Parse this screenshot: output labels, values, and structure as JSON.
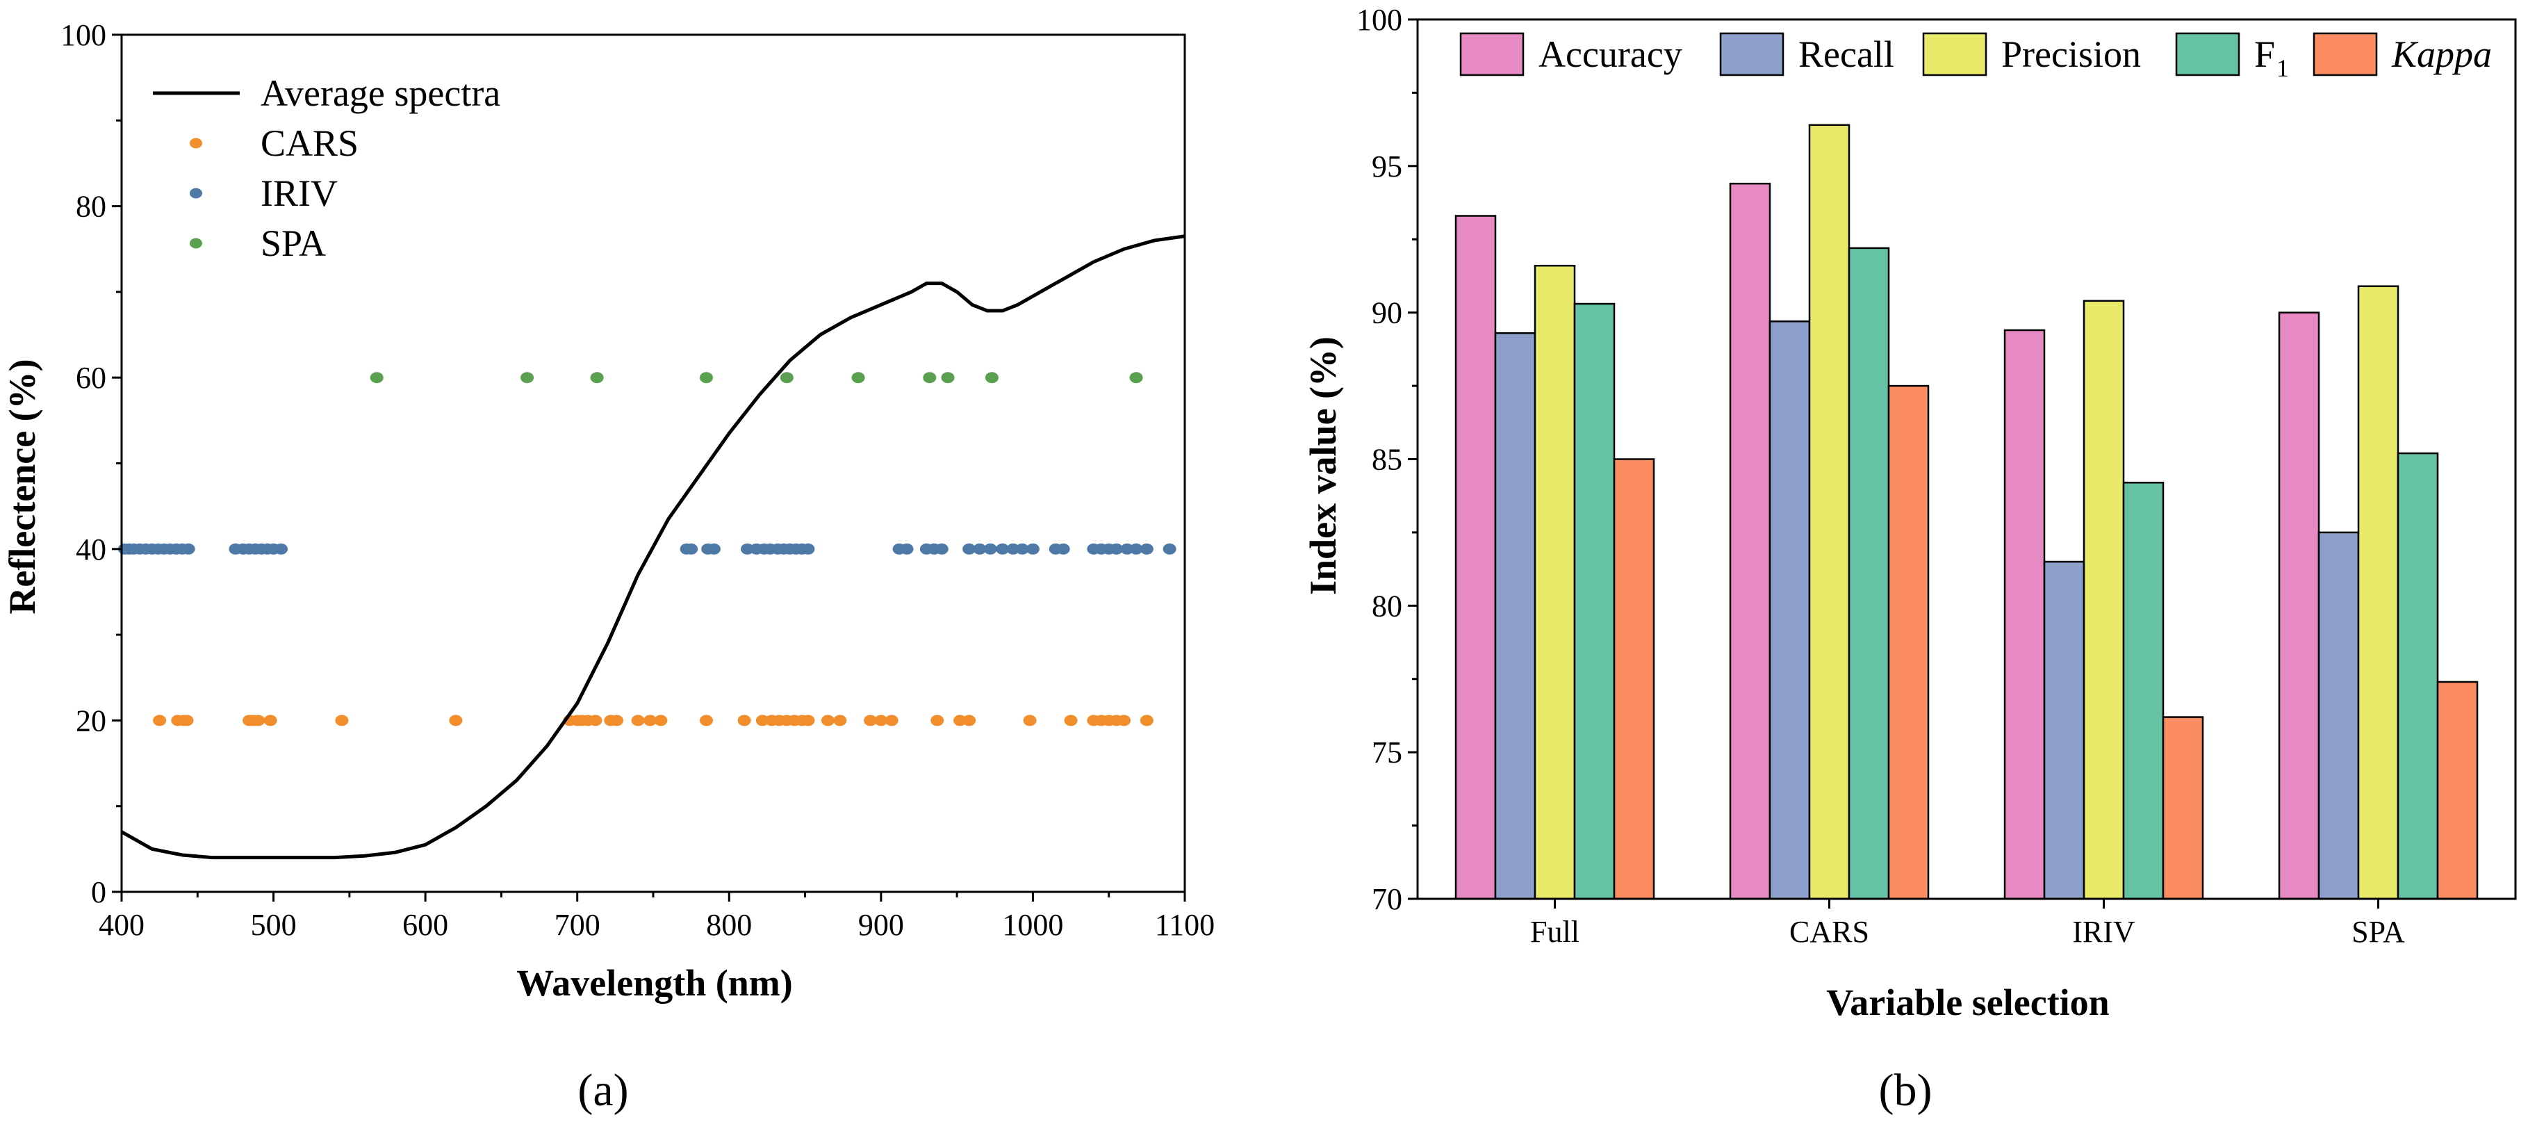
{
  "chart_data": [
    {
      "type": "scatter",
      "panel_label": "(a)",
      "xlabel": "Wavelength (nm)",
      "ylabel": "Reflectence (%)",
      "xlim": [
        400,
        1100
      ],
      "ylim": [
        0,
        100
      ],
      "xticks": [
        400,
        500,
        600,
        700,
        800,
        900,
        1000,
        1100
      ],
      "yticks": [
        0,
        20,
        40,
        60,
        80,
        100
      ],
      "grid": false,
      "legend_position": "top-left",
      "colors": {
        "line": "#000000",
        "CARS": "#F28E2B",
        "IRIV": "#4E79A7",
        "SPA": "#59A14F"
      },
      "line_series": {
        "name": "Average spectra",
        "x": [
          400,
          420,
          440,
          460,
          480,
          500,
          520,
          540,
          560,
          580,
          600,
          620,
          640,
          660,
          680,
          700,
          720,
          740,
          760,
          780,
          800,
          820,
          840,
          860,
          880,
          900,
          920,
          930,
          940,
          950,
          960,
          970,
          980,
          990,
          1000,
          1020,
          1040,
          1060,
          1080,
          1100
        ],
        "y": [
          7,
          5,
          4.3,
          4,
          4,
          4,
          4,
          4,
          4.2,
          4.6,
          5.5,
          7.5,
          10,
          13,
          17,
          22,
          29,
          37,
          43.5,
          48.5,
          53.5,
          58,
          62,
          65,
          67,
          68.5,
          70,
          71,
          71,
          70,
          68.5,
          67.8,
          67.8,
          68.5,
          69.5,
          71.5,
          73.5,
          75,
          76,
          76.5
        ]
      },
      "scatter_series": [
        {
          "name": "CARS",
          "y": 20,
          "x": [
            425,
            437,
            441,
            443,
            484,
            487,
            490,
            498,
            545,
            620,
            695,
            700,
            703,
            707,
            712,
            722,
            726,
            740,
            748,
            755,
            785,
            810,
            822,
            828,
            833,
            838,
            843,
            848,
            852,
            865,
            873,
            893,
            900,
            907,
            937,
            952,
            958,
            998,
            1025,
            1040,
            1045,
            1050,
            1055,
            1060,
            1075
          ]
        },
        {
          "name": "IRIV",
          "y": 40,
          "x": [
            402,
            405,
            408,
            412,
            416,
            420,
            424,
            428,
            432,
            436,
            440,
            444,
            475,
            480,
            484,
            488,
            492,
            496,
            500,
            505,
            772,
            775,
            786,
            790,
            812,
            818,
            823,
            827,
            832,
            836,
            840,
            844,
            848,
            852,
            912,
            917,
            930,
            935,
            940,
            958,
            965,
            972,
            980,
            987,
            993,
            1000,
            1015,
            1020,
            1040,
            1045,
            1050,
            1055,
            1062,
            1068,
            1075,
            1090
          ]
        },
        {
          "name": "SPA",
          "y": 60,
          "x": [
            568,
            667,
            713,
            785,
            838,
            885,
            932,
            944,
            973,
            1068
          ]
        }
      ]
    },
    {
      "type": "bar",
      "panel_label": "(b)",
      "xlabel": "Variable selection",
      "ylabel": "Index value (%)",
      "ylim": [
        70,
        100
      ],
      "yticks": [
        70,
        75,
        80,
        85,
        90,
        95,
        100
      ],
      "grid": false,
      "legend_position": "top",
      "categories": [
        "Full",
        "CARS",
        "IRIV",
        "SPA"
      ],
      "series": [
        {
          "name": "Accuracy",
          "color": "#E78AC3",
          "values": [
            93.3,
            94.4,
            89.4,
            90.0
          ]
        },
        {
          "name": "Recall",
          "color": "#8DA0CB",
          "values": [
            89.3,
            89.7,
            81.5,
            82.5
          ]
        },
        {
          "name": "Precision",
          "color": "#E9E96A",
          "values": [
            91.6,
            96.4,
            90.4,
            90.9
          ]
        },
        {
          "name": "F",
          "subscript": "1",
          "color": "#66C2A5",
          "values": [
            90.3,
            92.2,
            84.2,
            85.2
          ]
        },
        {
          "name": "Kappa",
          "italic": true,
          "color": "#FC8D62",
          "values": [
            85.0,
            87.5,
            76.2,
            77.4
          ]
        }
      ]
    }
  ]
}
